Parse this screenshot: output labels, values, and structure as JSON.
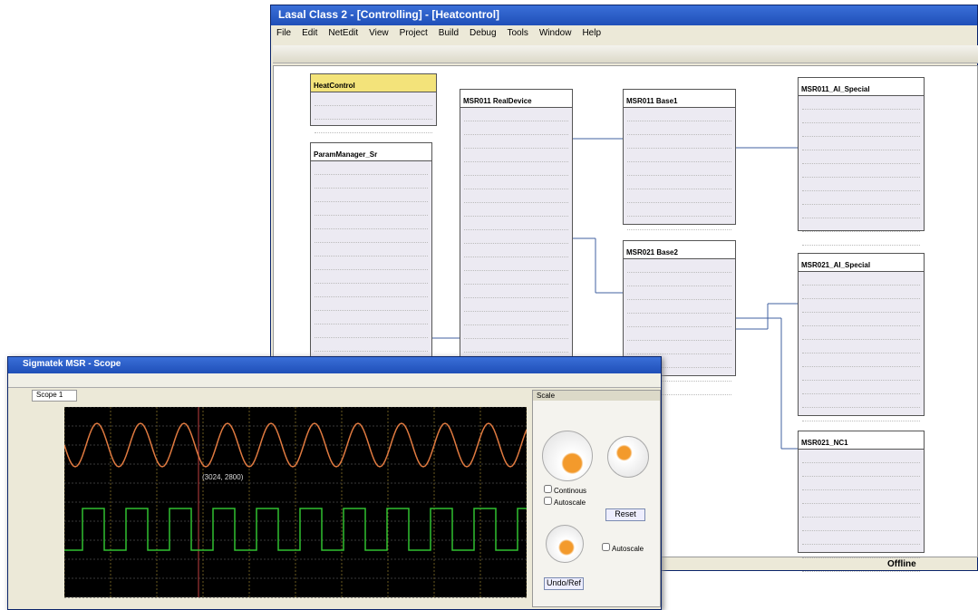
{
  "lasal": {
    "title": "Lasal Class 2 - [Controlling] - [Heatcontrol]",
    "menu": [
      "File",
      "Edit",
      "NetEdit",
      "View",
      "Project",
      "Build",
      "Debug",
      "Tools",
      "Window",
      "Help"
    ],
    "blocks": [
      "HeatControl",
      "ParamManager_Sr",
      "MSR011 RealDevice",
      "MSR011 Base1",
      "MSR021 Base2",
      "MSR011_AI_Special",
      "MSR021_AI_Special",
      "MSR021_NC1"
    ],
    "status": "Offline"
  },
  "scope": {
    "title": "Sigmatek MSR - Scope",
    "tab": "Scope 1",
    "panel": "Scale",
    "options": [
      "Continous",
      "Autoscale"
    ],
    "reset": "Reset",
    "autoscale": "Autoscale",
    "undo": "Undo/Ref",
    "annotation": "(3024, 2800)"
  }
}
